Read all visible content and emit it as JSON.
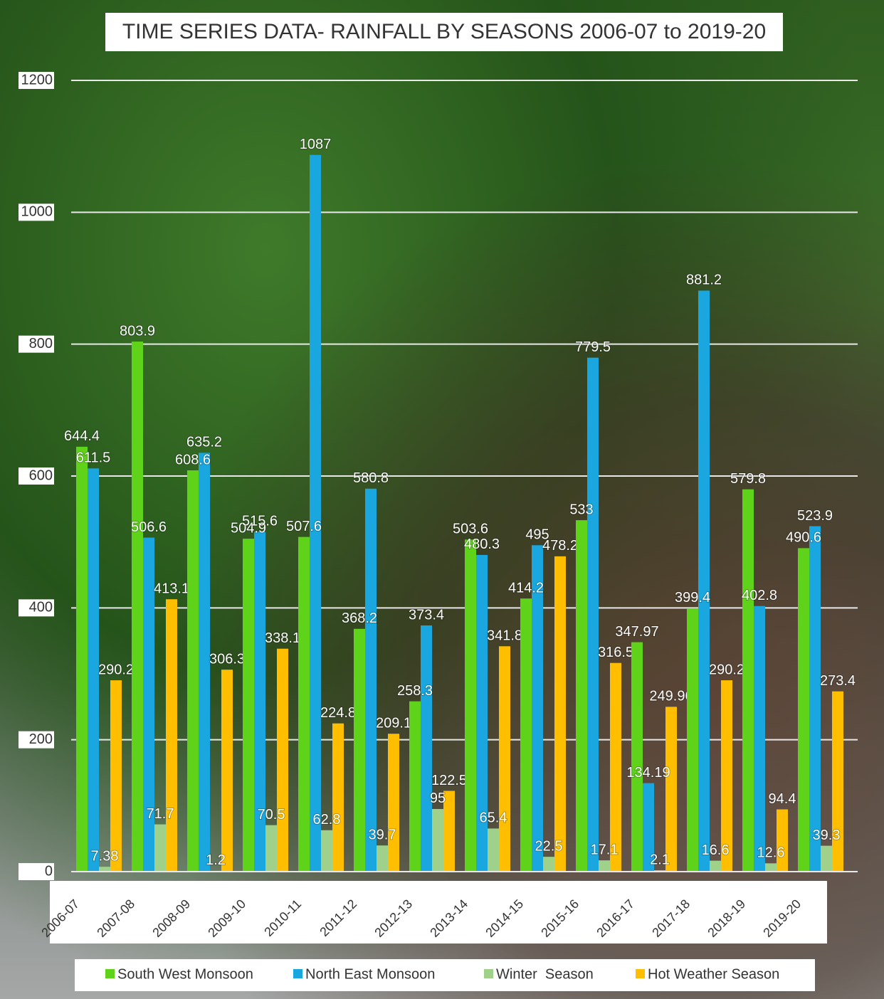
{
  "chart_data": {
    "type": "bar",
    "title": "TIME SERIES DATA- RAINFALL BY SEASONS 2006-07 to 2019-20",
    "categories": [
      "2006-07",
      "2007-08",
      "2008-09",
      "2009-10",
      "2010-11",
      "2011-12",
      "2012-13",
      "2013-14",
      "2014-15",
      "2015-16",
      "2016-17",
      "2017-18",
      "2018-19",
      "2019-20"
    ],
    "series": [
      {
        "name": "South West Monsoon",
        "color": "#5fd31a",
        "values": [
          644.4,
          803.9,
          608.6,
          504.9,
          507.6,
          368.2,
          258.3,
          503.6,
          414.2,
          533,
          347.97,
          399.4,
          579.8,
          490.6
        ]
      },
      {
        "name": "North East Monsoon",
        "color": "#1aa7e0",
        "values": [
          611.5,
          506.6,
          635.2,
          515.6,
          1087,
          580.8,
          373.4,
          480.3,
          495,
          779.5,
          134.19,
          881.2,
          402.8,
          523.9
        ]
      },
      {
        "name": "Winter  Season",
        "color": "#9fd18a",
        "values": [
          7.38,
          71.7,
          1.2,
          70.5,
          62.8,
          39.7,
          95,
          65.4,
          22.5,
          17.1,
          2.1,
          16.6,
          12.6,
          39.3
        ]
      },
      {
        "name": "Hot Weather Season",
        "color": "#ffbf00",
        "values": [
          290.2,
          413.1,
          306.3,
          338.1,
          224.8,
          209.1,
          122.5,
          341.8,
          478.2,
          316.5,
          249.96,
          290.2,
          94.4,
          273.4
        ]
      }
    ],
    "ylim": [
      0,
      1200
    ],
    "yticks": [
      0,
      200,
      400,
      600,
      800,
      1000,
      1200
    ],
    "grid": true,
    "legend": "bottom"
  }
}
